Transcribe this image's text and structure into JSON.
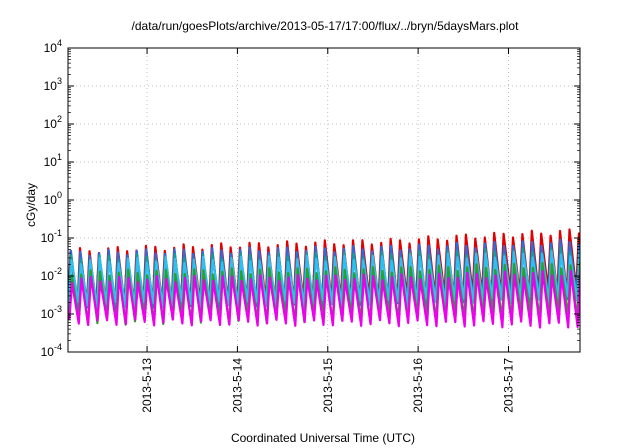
{
  "chart_data": {
    "type": "line",
    "title": "/data/run/goesPlots/archive/2013-05-17/17:00/flux/../bryn/5daysMars.plot",
    "xlabel": "Coordinated Universal Time (UTC)",
    "ylabel": "cGy/day",
    "y_scale": "log",
    "ylim": [
      0.0001,
      10000
    ],
    "y_ticks": [
      {
        "base": "10",
        "exp": "-4"
      },
      {
        "base": "10",
        "exp": "-3"
      },
      {
        "base": "10",
        "exp": "-2"
      },
      {
        "base": "10",
        "exp": "-1"
      },
      {
        "base": "10",
        "exp": "0"
      },
      {
        "base": "10",
        "exp": "1"
      },
      {
        "base": "10",
        "exp": "2"
      },
      {
        "base": "10",
        "exp": "3"
      },
      {
        "base": "10",
        "exp": "4"
      }
    ],
    "xlim": [
      "2013-05-12T03:00",
      "2013-05-17T19:00"
    ],
    "x_ticks": [
      {
        "label": "2013-5-13",
        "date": "2013-05-13T00:00"
      },
      {
        "label": "2013-5-14",
        "date": "2013-05-14T00:00"
      },
      {
        "label": "2013-5-15",
        "date": "2013-05-15T00:00"
      },
      {
        "label": "2013-5-16",
        "date": "2013-05-16T00:00"
      },
      {
        "label": "2013-5-17",
        "date": "2013-05-17T00:00"
      }
    ],
    "grid": true,
    "legend": "none",
    "pattern": "sawtooth",
    "sawtooth_period_hours": 2.5,
    "series": [
      {
        "color": "#e00000",
        "peak_low": 0.045,
        "peak_high": 0.15,
        "trough_low": 0.0014,
        "trough_high": 0.004
      },
      {
        "color": "#2e6bdc",
        "peak_low": 0.04,
        "peak_high": 0.08,
        "trough_low": 0.0012,
        "trough_high": 0.0025
      },
      {
        "color": "#0aa0a0",
        "peak_low": 0.03,
        "peak_high": 0.05,
        "trough_low": 0.0015,
        "trough_high": 0.0022
      },
      {
        "color": "#30c0f0",
        "peak_low": 0.025,
        "peak_high": 0.04,
        "trough_low": 0.0017,
        "trough_high": 0.0025
      },
      {
        "color": "#2ca02c",
        "peak_low": 0.012,
        "peak_high": 0.02,
        "trough_low": 0.0006,
        "trough_high": 0.0009
      },
      {
        "color": "#ee00ee",
        "peak_low": 0.008,
        "peak_high": 0.012,
        "trough_low": 0.0006,
        "trough_high": 0.0005
      }
    ]
  }
}
